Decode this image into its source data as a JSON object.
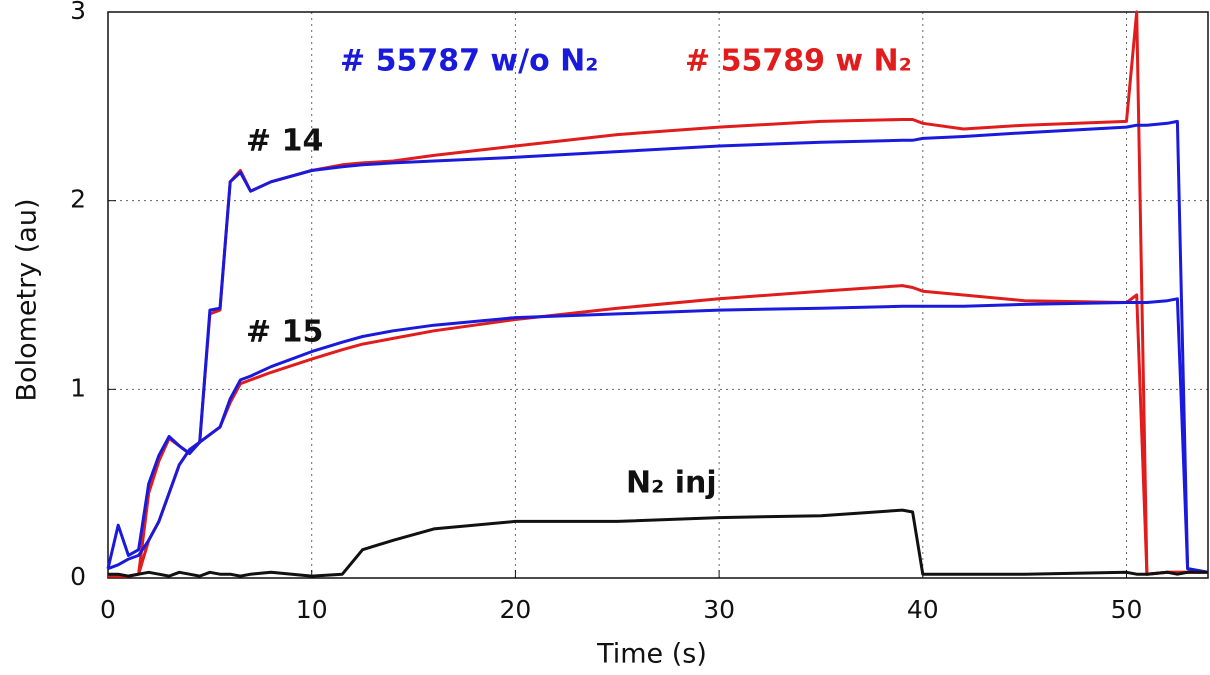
{
  "chart_data": {
    "type": "line",
    "xlabel": "Time (s)",
    "ylabel": "Bolometry (au)",
    "annotations": [
      "# 55787 w/o N₂",
      "# 55789 w N₂",
      "# 14",
      "# 15",
      "N₂ inj"
    ],
    "annotation_colors": [
      "#1a1adc",
      "#e01c1c",
      "#111111",
      "#111111",
      "#111111"
    ],
    "xlim": [
      0,
      54
    ],
    "ylim": [
      0,
      3
    ],
    "xticks": [
      0,
      10,
      20,
      30,
      40,
      50
    ],
    "yticks": [
      0,
      1,
      2,
      3
    ],
    "grid": true,
    "x": [
      0,
      0.5,
      1,
      1.5,
      2,
      2.5,
      3,
      3.5,
      4,
      4.5,
      5,
      5.5,
      6,
      6.5,
      7,
      8,
      10,
      11.5,
      12.5,
      14,
      16,
      20,
      25,
      30,
      35,
      39,
      39.5,
      40,
      42,
      45,
      50,
      50.5,
      51,
      52,
      52.5,
      53,
      54
    ],
    "series": [
      {
        "color": "#e01c1c",
        "values": [
          0.01,
          0.01,
          0.01,
          0.02,
          0.45,
          0.62,
          0.74,
          0.7,
          0.66,
          0.72,
          1.4,
          1.42,
          2.1,
          2.16,
          2.05,
          2.1,
          2.16,
          2.19,
          2.2,
          2.21,
          2.24,
          2.29,
          2.35,
          2.39,
          2.42,
          2.43,
          2.43,
          2.41,
          2.38,
          2.4,
          2.42,
          3,
          0.02,
          0.03,
          0.03,
          0.03,
          0.03
        ]
      },
      {
        "color": "#e01c1c",
        "values": [
          0.01,
          0.01,
          0.01,
          0.02,
          0.2,
          0.3,
          0.45,
          0.6,
          0.68,
          0.72,
          0.76,
          0.8,
          0.93,
          1.03,
          1.05,
          1.09,
          1.16,
          1.21,
          1.24,
          1.27,
          1.31,
          1.37,
          1.43,
          1.48,
          1.52,
          1.55,
          1.54,
          1.52,
          1.5,
          1.47,
          1.46,
          1.5,
          0.02,
          0.03,
          0.03,
          0.03,
          0.03
        ]
      },
      {
        "color": "#1a1adc",
        "values": [
          0.05,
          0.28,
          0.12,
          0.15,
          0.5,
          0.65,
          0.75,
          0.7,
          0.66,
          0.72,
          1.42,
          1.43,
          2.1,
          2.15,
          2.05,
          2.1,
          2.16,
          2.18,
          2.19,
          2.2,
          2.21,
          2.23,
          2.26,
          2.29,
          2.31,
          2.32,
          2.32,
          2.33,
          2.34,
          2.36,
          2.39,
          2.4,
          2.4,
          2.41,
          2.42,
          0.05,
          0.03
        ]
      },
      {
        "color": "#1a1adc",
        "values": [
          0.05,
          0.07,
          0.1,
          0.12,
          0.2,
          0.3,
          0.45,
          0.6,
          0.68,
          0.72,
          0.76,
          0.8,
          0.95,
          1.05,
          1.07,
          1.12,
          1.2,
          1.25,
          1.28,
          1.31,
          1.34,
          1.38,
          1.4,
          1.42,
          1.43,
          1.44,
          1.44,
          1.44,
          1.44,
          1.45,
          1.46,
          1.46,
          1.46,
          1.47,
          1.48,
          0.05,
          0.03
        ]
      },
      {
        "color": "#111111",
        "values": [
          0.02,
          0.02,
          0.01,
          0.02,
          0.03,
          0.02,
          0.01,
          0.03,
          0.02,
          0.01,
          0.03,
          0.02,
          0.02,
          0.01,
          0.02,
          0.03,
          0.01,
          0.02,
          0.15,
          0.2,
          0.26,
          0.3,
          0.3,
          0.32,
          0.33,
          0.36,
          0.35,
          0.02,
          0.02,
          0.02,
          0.03,
          0.02,
          0.02,
          0.03,
          0.02,
          0.03,
          0.03
        ]
      }
    ]
  }
}
